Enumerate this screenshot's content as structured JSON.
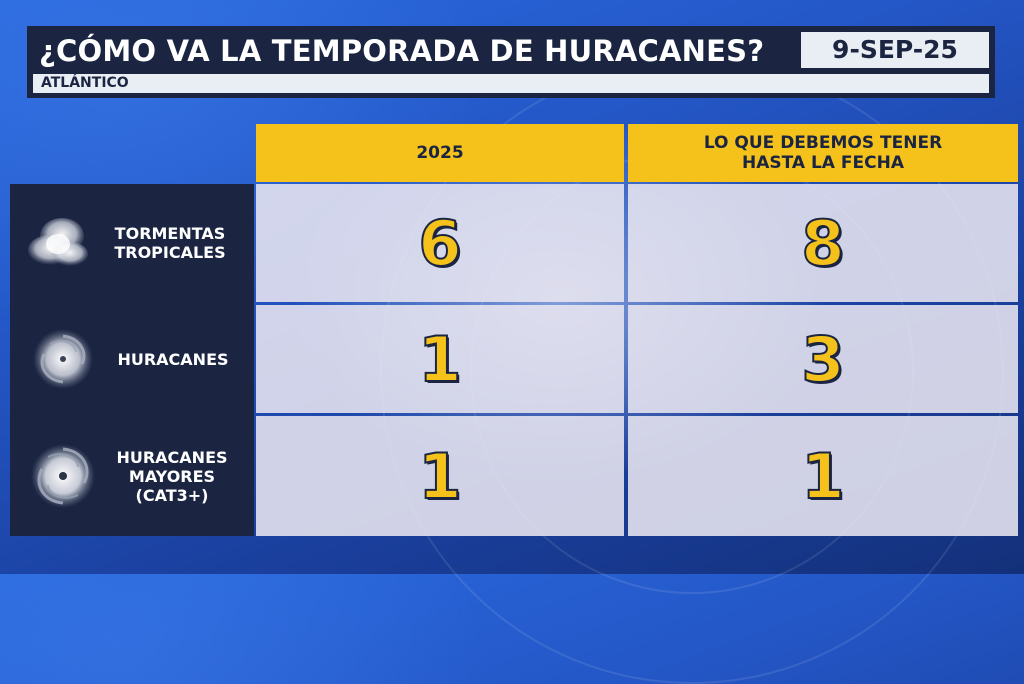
{
  "header": {
    "title": "¿CÓMO VA LA TEMPORADA DE HURACANES?",
    "date": "9-SEP-25",
    "subtitle": "ATLÁNTICO"
  },
  "columns": [
    {
      "label_line1": "2025",
      "label_line2": ""
    },
    {
      "label_line1": "LO QUE DEBEMOS TENER",
      "label_line2": "HASTA LA FECHA"
    }
  ],
  "rows": [
    {
      "icon": "tropical-storm-satellite-icon",
      "label_lines": [
        "TORMENTAS",
        "TROPICALES",
        ""
      ],
      "value_2025": "6",
      "value_expected": "8"
    },
    {
      "icon": "hurricane-satellite-icon",
      "label_lines": [
        "HURACANES",
        "",
        ""
      ],
      "value_2025": "1",
      "value_expected": "3"
    },
    {
      "icon": "major-hurricane-satellite-icon",
      "label_lines": [
        "HURACANES",
        "MAYORES",
        "(CAT3+)"
      ],
      "value_2025": "1",
      "value_expected": "1"
    }
  ],
  "colors": {
    "navy": "#1b2542",
    "yellow": "#f5c21b",
    "cell": "#e9e6f0",
    "background_blue": "#2457c7"
  }
}
